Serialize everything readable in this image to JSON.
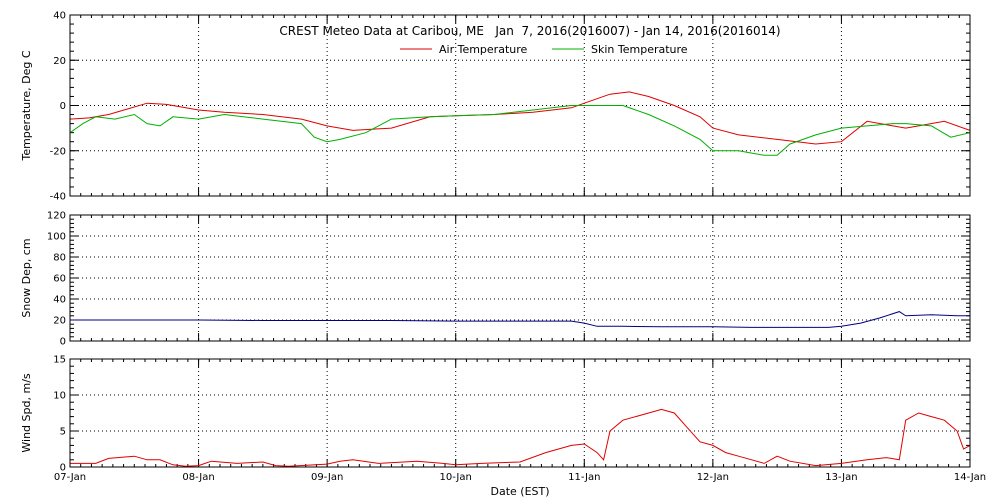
{
  "chart_data": [
    {
      "type": "line",
      "title": "CREST Meteo Data at Caribou, ME   Jan  7, 2016(2016007) - Jan 14, 2016(2016014)",
      "ylabel": "Temperature, Deg C",
      "ylim": [
        -40,
        40
      ],
      "yticks": [
        -40,
        -20,
        0,
        20,
        40
      ],
      "grid": true,
      "legend_position": "top-center",
      "series": [
        {
          "name": "Air Temperature",
          "color": "#e00000",
          "x": [
            0,
            0.15,
            0.3,
            0.45,
            0.6,
            0.75,
            1.0,
            1.2,
            1.5,
            1.8,
            2.0,
            2.2,
            2.5,
            2.8,
            3.0,
            3.3,
            3.6,
            3.9,
            4.0,
            4.1,
            4.2,
            4.35,
            4.5,
            4.7,
            4.9,
            5.0,
            5.2,
            5.5,
            5.8,
            6.0,
            6.2,
            6.4,
            6.5,
            6.6,
            6.8,
            7.0
          ],
          "y": [
            -6,
            -5.5,
            -4,
            -1.5,
            1,
            0.5,
            -2,
            -3,
            -4,
            -6,
            -9,
            -11,
            -10,
            -5,
            -4.5,
            -4,
            -3,
            -1,
            1,
            3,
            5,
            6,
            4,
            0,
            -5,
            -10,
            -13,
            -15,
            -17,
            -16,
            -7,
            -9,
            -10,
            -9,
            -7,
            -11
          ]
        },
        {
          "name": "Skin Temperature",
          "color": "#00b000",
          "x": [
            0,
            0.1,
            0.2,
            0.35,
            0.5,
            0.6,
            0.7,
            0.8,
            1.0,
            1.2,
            1.5,
            1.8,
            1.9,
            2.0,
            2.1,
            2.3,
            2.5,
            2.8,
            3.0,
            3.3,
            3.6,
            3.9,
            4.0,
            4.1,
            4.2,
            4.3,
            4.5,
            4.7,
            4.9,
            5.0,
            5.2,
            5.4,
            5.5,
            5.6,
            5.8,
            6.0,
            6.2,
            6.4,
            6.5,
            6.7,
            6.85,
            7.0
          ],
          "y": [
            -12,
            -8,
            -5,
            -6,
            -4,
            -8,
            -9,
            -5,
            -6,
            -4,
            -6,
            -8,
            -14,
            -16,
            -15,
            -12,
            -6,
            -5,
            -4.5,
            -4,
            -2,
            0,
            0,
            0,
            0,
            0,
            -4,
            -9,
            -15,
            -20,
            -20,
            -22,
            -22,
            -17,
            -13,
            -10,
            -9,
            -8,
            -8,
            -9,
            -14,
            -12
          ]
        }
      ]
    },
    {
      "type": "line",
      "ylabel": "Snow Dep, cm",
      "ylim": [
        0,
        120
      ],
      "yticks": [
        0,
        20,
        40,
        60,
        80,
        100,
        120
      ],
      "grid": true,
      "series": [
        {
          "color": "#000080",
          "x": [
            0,
            0.5,
            1.0,
            1.5,
            2.0,
            2.5,
            3.0,
            3.5,
            3.9,
            4.0,
            4.1,
            4.3,
            4.6,
            5.0,
            5.3,
            5.6,
            5.9,
            6.0,
            6.15,
            6.3,
            6.45,
            6.5,
            6.7,
            6.9,
            7.0
          ],
          "y": [
            20,
            20,
            20,
            19.5,
            19.5,
            19.5,
            19,
            19,
            19,
            17,
            14,
            14,
            13.5,
            13.5,
            13,
            13,
            13,
            14,
            17,
            22,
            28,
            24,
            25,
            24,
            24
          ]
        }
      ]
    },
    {
      "type": "line",
      "xlabel": "Date (EST)",
      "ylabel": "Wind Spd, m/s",
      "ylim": [
        0,
        15
      ],
      "yticks": [
        0,
        5,
        10,
        15
      ],
      "grid": true,
      "categories": [
        "07-Jan",
        "08-Jan",
        "09-Jan",
        "10-Jan",
        "11-Jan",
        "12-Jan",
        "13-Jan",
        "14-Jan"
      ],
      "series": [
        {
          "color": "#e00000",
          "x": [
            0,
            0.2,
            0.3,
            0.5,
            0.6,
            0.7,
            0.8,
            0.9,
            1.0,
            1.05,
            1.1,
            1.3,
            1.5,
            1.6,
            1.7,
            2.0,
            2.1,
            2.2,
            2.4,
            2.7,
            2.9,
            3.0,
            3.2,
            3.5,
            3.7,
            3.9,
            4.0,
            4.1,
            4.15,
            4.2,
            4.3,
            4.5,
            4.6,
            4.7,
            4.8,
            4.9,
            5.0,
            5.1,
            5.2,
            5.4,
            5.5,
            5.6,
            5.8,
            6.0,
            6.2,
            6.35,
            6.45,
            6.5,
            6.6,
            6.7,
            6.8,
            6.9,
            6.95,
            7.0
          ],
          "y": [
            0.5,
            0.5,
            1.2,
            1.5,
            1.0,
            1.0,
            0.3,
            0.1,
            0.2,
            0.5,
            0.8,
            0.5,
            0.7,
            0.2,
            0.1,
            0.4,
            0.8,
            1.0,
            0.5,
            0.8,
            0.5,
            0.3,
            0.5,
            0.7,
            2.0,
            3.0,
            3.2,
            2.0,
            1.0,
            5.0,
            6.5,
            7.5,
            8.0,
            7.5,
            5.5,
            3.5,
            3.0,
            2.0,
            1.5,
            0.5,
            1.5,
            0.8,
            0.2,
            0.5,
            1.0,
            1.3,
            1.0,
            6.5,
            7.5,
            7.0,
            6.5,
            5.0,
            2.5,
            3.0
          ]
        }
      ]
    }
  ]
}
